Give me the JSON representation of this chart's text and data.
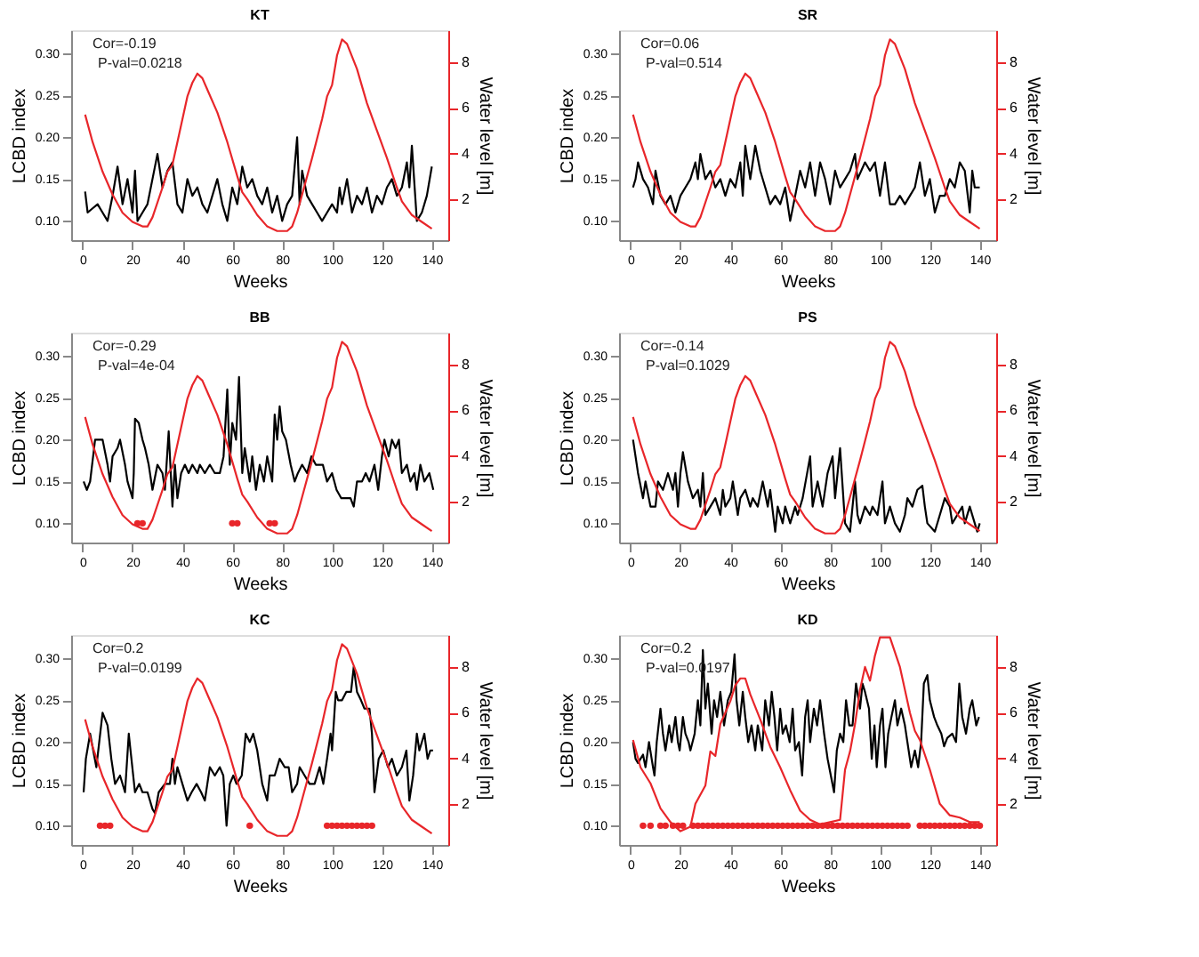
{
  "chart_data": [
    {
      "type": "line",
      "title": "KT",
      "xlabel": "Weeks",
      "ylabel": "LCBD index",
      "y2label": "Water level [m]",
      "xlim": [
        -4.6,
        146.6
      ],
      "xticks": [
        0,
        20,
        40,
        60,
        80,
        100,
        120,
        140
      ],
      "ylim": [
        0.077,
        0.328
      ],
      "yticks": [
        {
          "value": 0.1,
          "label": "0.10"
        },
        {
          "value": 0.15,
          "label": "0.15"
        },
        {
          "value": 0.2,
          "label": "0.20"
        },
        {
          "value": 0.25,
          "label": "0.25"
        },
        {
          "value": 0.3,
          "label": "0.30"
        }
      ],
      "y2lim": [
        0.2,
        9.4
      ],
      "y2ticks": [
        2,
        4,
        6,
        8
      ],
      "annotations": [
        "Cor=-0.19",
        "P-val=0.0218"
      ],
      "series": [
        {
          "color": "#000000",
          "x": [
            1,
            2,
            4,
            6,
            8,
            10,
            12,
            14,
            16,
            18,
            20,
            21,
            22,
            24,
            26,
            28,
            30,
            32,
            34,
            36,
            38,
            40,
            42,
            44,
            46,
            48,
            50,
            52,
            54,
            56,
            58,
            60,
            62,
            64,
            66,
            68,
            70,
            72,
            74,
            76,
            78,
            80,
            82,
            84,
            86,
            87,
            88,
            90,
            92,
            94,
            96,
            98,
            100,
            102,
            103,
            104,
            106,
            108,
            110,
            112,
            114,
            116,
            118,
            120,
            122,
            124,
            126,
            128,
            130,
            131,
            132,
            134,
            136,
            138,
            140
          ],
          "values": [
            0.135,
            0.11,
            0.115,
            0.12,
            0.11,
            0.1,
            0.13,
            0.165,
            0.12,
            0.15,
            0.11,
            0.16,
            0.1,
            0.11,
            0.12,
            0.15,
            0.18,
            0.14,
            0.16,
            0.17,
            0.12,
            0.11,
            0.15,
            0.13,
            0.14,
            0.12,
            0.11,
            0.13,
            0.15,
            0.12,
            0.1,
            0.14,
            0.12,
            0.165,
            0.14,
            0.15,
            0.13,
            0.12,
            0.14,
            0.11,
            0.13,
            0.1,
            0.12,
            0.13,
            0.2,
            0.12,
            0.16,
            0.13,
            0.12,
            0.11,
            0.1,
            0.11,
            0.12,
            0.11,
            0.14,
            0.12,
            0.15,
            0.11,
            0.13,
            0.12,
            0.14,
            0.11,
            0.13,
            0.12,
            0.14,
            0.15,
            0.13,
            0.14,
            0.17,
            0.14,
            0.19,
            0.1,
            0.11,
            0.13,
            0.165
          ]
        },
        {
          "color": "#e8262a",
          "axis": "y2",
          "x": [
            1,
            4,
            8,
            12,
            16,
            20,
            24,
            26,
            28,
            32,
            34,
            36,
            38,
            42,
            44,
            46,
            48,
            50,
            54,
            58,
            62,
            64,
            66,
            70,
            74,
            78,
            82,
            84,
            86,
            88,
            92,
            96,
            98,
            100,
            102,
            104,
            106,
            110,
            114,
            118,
            122,
            126,
            128,
            132,
            136,
            140
          ],
          "values": [
            5.7,
            4.5,
            3.2,
            2.2,
            1.4,
            1.0,
            0.8,
            0.8,
            1.2,
            2.5,
            3.2,
            3.5,
            4.5,
            6.5,
            7.1,
            7.5,
            7.3,
            6.8,
            5.8,
            4.5,
            3.0,
            2.3,
            2.0,
            1.3,
            0.8,
            0.6,
            0.6,
            0.8,
            1.4,
            2.2,
            3.8,
            5.5,
            6.5,
            7.0,
            8.3,
            9.0,
            8.8,
            7.7,
            6.2,
            5.0,
            3.8,
            2.5,
            1.9,
            1.3,
            1.0,
            0.7
          ]
        }
      ]
    },
    {
      "type": "line",
      "title": "SR",
      "xlabel": "Weeks",
      "ylabel": "LCBD index",
      "y2label": "Water level [m]",
      "xlim": [
        -4.6,
        146.6
      ],
      "xticks": [
        0,
        20,
        40,
        60,
        80,
        100,
        120,
        140
      ],
      "ylim": [
        0.077,
        0.328
      ],
      "yticks": [
        {
          "value": 0.1,
          "label": "0.10"
        },
        {
          "value": 0.15,
          "label": "0.15"
        },
        {
          "value": 0.2,
          "label": "0.20"
        },
        {
          "value": 0.25,
          "label": "0.25"
        },
        {
          "value": 0.3,
          "label": "0.30"
        }
      ],
      "y2lim": [
        0.2,
        9.4
      ],
      "y2ticks": [
        2,
        4,
        6,
        8
      ],
      "annotations": [
        "Cor=0.06",
        "P-val=0.514"
      ],
      "series": [
        {
          "color": "#000000",
          "x": [
            1,
            2,
            3,
            5,
            7,
            9,
            10,
            12,
            14,
            16,
            18,
            20,
            22,
            24,
            26,
            27,
            28,
            30,
            32,
            34,
            36,
            38,
            40,
            42,
            44,
            45,
            46,
            48,
            50,
            52,
            54,
            56,
            58,
            60,
            62,
            64,
            66,
            68,
            70,
            72,
            74,
            76,
            78,
            80,
            82,
            84,
            86,
            88,
            90,
            91,
            94,
            96,
            98,
            100,
            102,
            104,
            106,
            108,
            110,
            112,
            114,
            116,
            118,
            120,
            122,
            124,
            126,
            128,
            130,
            132,
            134,
            136,
            137,
            138,
            140
          ],
          "values": [
            0.14,
            0.15,
            0.17,
            0.15,
            0.14,
            0.12,
            0.16,
            0.13,
            0.12,
            0.13,
            0.11,
            0.13,
            0.14,
            0.15,
            0.17,
            0.15,
            0.18,
            0.15,
            0.16,
            0.14,
            0.15,
            0.13,
            0.15,
            0.14,
            0.17,
            0.13,
            0.19,
            0.15,
            0.19,
            0.16,
            0.14,
            0.12,
            0.13,
            0.12,
            0.14,
            0.1,
            0.13,
            0.16,
            0.14,
            0.17,
            0.13,
            0.17,
            0.15,
            0.12,
            0.16,
            0.14,
            0.15,
            0.16,
            0.18,
            0.15,
            0.17,
            0.16,
            0.17,
            0.13,
            0.17,
            0.12,
            0.12,
            0.13,
            0.12,
            0.13,
            0.14,
            0.17,
            0.13,
            0.15,
            0.11,
            0.13,
            0.13,
            0.15,
            0.14,
            0.17,
            0.16,
            0.11,
            0.16,
            0.14,
            0.14
          ]
        },
        {
          "color": "#e8262a",
          "axis": "y2",
          "x": [
            1,
            4,
            8,
            12,
            16,
            20,
            24,
            26,
            28,
            32,
            34,
            36,
            38,
            42,
            44,
            46,
            48,
            50,
            54,
            58,
            62,
            64,
            66,
            70,
            74,
            78,
            82,
            84,
            86,
            88,
            92,
            96,
            98,
            100,
            102,
            104,
            106,
            110,
            114,
            118,
            122,
            126,
            128,
            132,
            136,
            140
          ],
          "values": [
            5.7,
            4.5,
            3.2,
            2.2,
            1.4,
            1.0,
            0.8,
            0.8,
            1.2,
            2.5,
            3.2,
            3.5,
            4.5,
            6.5,
            7.1,
            7.5,
            7.3,
            6.8,
            5.8,
            4.5,
            3.0,
            2.3,
            2.0,
            1.3,
            0.8,
            0.6,
            0.6,
            0.8,
            1.4,
            2.2,
            3.8,
            5.5,
            6.5,
            7.0,
            8.3,
            9.0,
            8.8,
            7.7,
            6.2,
            5.0,
            3.8,
            2.5,
            1.9,
            1.3,
            1.0,
            0.7
          ]
        }
      ]
    },
    {
      "type": "line",
      "title": "BB",
      "xlabel": "Weeks",
      "ylabel": "LCBD index",
      "y2label": "Water level [m]",
      "xlim": [
        -4.6,
        146.6
      ],
      "xticks": [
        0,
        20,
        40,
        60,
        80,
        100,
        120,
        140
      ],
      "ylim": [
        0.077,
        0.328
      ],
      "yticks": [
        {
          "value": 0.1,
          "label": "0.10"
        },
        {
          "value": 0.15,
          "label": "0.15"
        },
        {
          "value": 0.2,
          "label": "0.20"
        },
        {
          "value": 0.25,
          "label": "0.25"
        },
        {
          "value": 0.3,
          "label": "0.30"
        }
      ],
      "y2lim": [
        0.2,
        9.4
      ],
      "y2ticks": [
        2,
        4,
        6,
        8
      ],
      "annotations": [
        "Cor=-0.29",
        "P-val=4e-04"
      ],
      "series": [
        {
          "color": "#000000",
          "x": [
            0.4,
            1.7,
            3,
            5,
            7,
            8,
            10,
            11,
            12,
            14,
            15,
            17,
            18,
            20,
            20.5,
            21,
            22.5,
            24,
            25,
            26.5,
            28,
            30,
            32,
            33,
            34.5,
            36,
            37,
            38,
            39.5,
            41,
            42.5,
            44,
            46,
            47,
            49,
            51,
            53,
            55,
            56.5,
            58,
            59,
            60,
            61.5,
            62.7,
            64,
            65,
            67,
            68,
            69.5,
            71,
            72.7,
            74,
            76,
            77,
            78,
            79,
            80,
            81.5,
            83.4,
            85,
            86.3,
            88,
            90,
            91.7,
            93.5,
            96.3,
            98,
            100,
            101.8,
            103.7,
            105.5,
            107.4,
            108.7,
            110,
            112,
            113.5,
            115,
            117,
            118.5,
            120,
            121,
            122.7,
            124,
            125.5,
            126.8,
            128,
            130,
            131.4,
            133,
            134,
            135.4,
            137,
            139,
            140.6
          ],
          "values": [
            0.15,
            0.14,
            0.15,
            0.2,
            0.2,
            0.2,
            0.17,
            0.15,
            0.18,
            0.19,
            0.2,
            0.17,
            0.15,
            0.13,
            0.16,
            0.225,
            0.22,
            0.2,
            0.19,
            0.17,
            0.14,
            0.17,
            0.16,
            0.14,
            0.21,
            0.12,
            0.17,
            0.13,
            0.16,
            0.17,
            0.16,
            0.17,
            0.16,
            0.17,
            0.16,
            0.17,
            0.16,
            0.16,
            0.18,
            0.26,
            0.17,
            0.22,
            0.2,
            0.275,
            0.16,
            0.19,
            0.15,
            0.18,
            0.14,
            0.17,
            0.15,
            0.18,
            0.15,
            0.23,
            0.2,
            0.24,
            0.21,
            0.2,
            0.17,
            0.15,
            0.16,
            0.17,
            0.16,
            0.18,
            0.17,
            0.17,
            0.15,
            0.16,
            0.14,
            0.13,
            0.13,
            0.13,
            0.12,
            0.15,
            0.15,
            0.16,
            0.15,
            0.17,
            0.14,
            0.18,
            0.2,
            0.18,
            0.2,
            0.19,
            0.2,
            0.16,
            0.17,
            0.15,
            0.16,
            0.14,
            0.17,
            0.15,
            0.16,
            0.14
          ]
        },
        {
          "color": "#e8262a",
          "axis": "y2",
          "x": [
            1,
            4,
            8,
            12,
            16,
            20,
            24,
            26,
            28,
            32,
            34,
            36,
            38,
            42,
            44,
            46,
            48,
            50,
            54,
            58,
            62,
            64,
            66,
            70,
            74,
            78,
            82,
            84,
            86,
            88,
            92,
            96,
            98,
            100,
            102,
            104,
            106,
            110,
            114,
            118,
            122,
            126,
            128,
            132,
            136,
            140
          ],
          "values": [
            5.7,
            4.5,
            3.2,
            2.2,
            1.4,
            1.0,
            0.8,
            0.8,
            1.2,
            2.5,
            3.2,
            3.5,
            4.5,
            6.5,
            7.1,
            7.5,
            7.3,
            6.8,
            5.8,
            4.5,
            3.0,
            2.3,
            2.0,
            1.3,
            0.8,
            0.6,
            0.6,
            0.8,
            1.4,
            2.2,
            3.8,
            5.5,
            6.5,
            7.0,
            8.3,
            9.0,
            8.8,
            7.7,
            6.2,
            5.0,
            3.8,
            2.5,
            1.9,
            1.3,
            1.0,
            0.7
          ]
        },
        {
          "type": "scatter",
          "marker": "circle",
          "color": "#e8262a",
          "x": [
            22,
            24,
            60,
            62,
            75,
            77
          ],
          "values": [
            0.1,
            0.1,
            0.1,
            0.1,
            0.1,
            0.1
          ]
        }
      ]
    },
    {
      "type": "line",
      "title": "PS",
      "xlabel": "Weeks",
      "ylabel": "LCBD index",
      "y2label": "Water level [m]",
      "xlim": [
        -4.6,
        146.6
      ],
      "xticks": [
        0,
        20,
        40,
        60,
        80,
        100,
        120,
        140
      ],
      "ylim": [
        0.077,
        0.328
      ],
      "yticks": [
        {
          "value": 0.1,
          "label": "0.10"
        },
        {
          "value": 0.15,
          "label": "0.15"
        },
        {
          "value": 0.2,
          "label": "0.20"
        },
        {
          "value": 0.25,
          "label": "0.25"
        },
        {
          "value": 0.3,
          "label": "0.30"
        }
      ],
      "y2lim": [
        0.2,
        9.4
      ],
      "y2ticks": [
        2,
        4,
        6,
        8
      ],
      "annotations": [
        "Cor=-0.14",
        "P-val=0.1029"
      ],
      "series": [
        {
          "color": "#000000",
          "x": [
            1,
            3,
            5,
            6,
            8,
            10,
            11,
            13,
            15,
            17,
            18,
            19,
            20,
            21,
            23,
            25,
            27,
            28,
            29,
            30,
            32,
            34,
            36,
            37,
            38,
            40,
            41,
            43,
            44,
            46,
            48,
            49,
            51,
            53,
            55,
            56,
            58,
            59,
            61,
            62,
            64,
            66,
            67,
            69,
            72,
            73,
            75,
            77,
            79,
            81,
            82,
            84,
            86,
            88,
            90,
            91,
            92,
            94,
            96,
            97,
            99,
            101,
            102,
            104,
            106,
            108,
            110,
            111,
            113,
            115,
            117,
            118,
            119,
            122,
            124,
            126,
            128,
            129,
            131,
            133,
            134,
            136,
            138,
            139,
            140
          ],
          "values": [
            0.2,
            0.16,
            0.13,
            0.15,
            0.12,
            0.12,
            0.15,
            0.14,
            0.16,
            0.14,
            0.16,
            0.12,
            0.16,
            0.185,
            0.15,
            0.13,
            0.14,
            0.12,
            0.16,
            0.11,
            0.12,
            0.13,
            0.11,
            0.14,
            0.12,
            0.13,
            0.15,
            0.11,
            0.13,
            0.14,
            0.12,
            0.13,
            0.12,
            0.15,
            0.12,
            0.14,
            0.09,
            0.12,
            0.1,
            0.12,
            0.1,
            0.12,
            0.11,
            0.13,
            0.18,
            0.12,
            0.15,
            0.12,
            0.16,
            0.18,
            0.13,
            0.19,
            0.1,
            0.09,
            0.15,
            0.11,
            0.1,
            0.12,
            0.11,
            0.12,
            0.11,
            0.15,
            0.1,
            0.12,
            0.1,
            0.09,
            0.11,
            0.13,
            0.12,
            0.14,
            0.145,
            0.12,
            0.1,
            0.09,
            0.11,
            0.13,
            0.12,
            0.1,
            0.11,
            0.12,
            0.1,
            0.12,
            0.1,
            0.09,
            0.1
          ]
        },
        {
          "color": "#e8262a",
          "axis": "y2",
          "x": [
            1,
            4,
            8,
            12,
            16,
            20,
            24,
            26,
            28,
            32,
            34,
            36,
            38,
            42,
            44,
            46,
            48,
            50,
            54,
            58,
            62,
            64,
            66,
            70,
            74,
            78,
            82,
            84,
            86,
            88,
            92,
            96,
            98,
            100,
            102,
            104,
            106,
            110,
            114,
            118,
            122,
            126,
            128,
            132,
            136,
            140
          ],
          "values": [
            5.7,
            4.5,
            3.2,
            2.2,
            1.4,
            1.0,
            0.8,
            0.8,
            1.2,
            2.5,
            3.2,
            3.5,
            4.5,
            6.5,
            7.1,
            7.5,
            7.3,
            6.8,
            5.8,
            4.5,
            3.0,
            2.3,
            2.0,
            1.3,
            0.8,
            0.6,
            0.6,
            0.8,
            1.4,
            2.2,
            3.8,
            5.5,
            6.5,
            7.0,
            8.3,
            9.0,
            8.8,
            7.7,
            6.2,
            5.0,
            3.8,
            2.5,
            1.9,
            1.3,
            1.0,
            0.7
          ]
        }
      ]
    },
    {
      "type": "line",
      "title": "KC",
      "xlabel": "Weeks",
      "ylabel": "LCBD index",
      "y2label": "Water level [m]",
      "xlim": [
        -4.6,
        146.6
      ],
      "xticks": [
        0,
        20,
        40,
        60,
        80,
        100,
        120,
        140
      ],
      "ylim": [
        0.077,
        0.328
      ],
      "yticks": [
        {
          "value": 0.1,
          "label": "0.10"
        },
        {
          "value": 0.15,
          "label": "0.15"
        },
        {
          "value": 0.2,
          "label": "0.20"
        },
        {
          "value": 0.25,
          "label": "0.25"
        },
        {
          "value": 0.3,
          "label": "0.30"
        }
      ],
      "y2lim": [
        0.2,
        9.4
      ],
      "y2ticks": [
        2,
        4,
        6,
        8
      ],
      "annotations": [
        "Cor=0.2",
        "P-val=0.0199"
      ],
      "series": [
        {
          "color": "#000000",
          "x": [
            0.4,
            1.3,
            3,
            5.5,
            8,
            10,
            11.5,
            13,
            15,
            17,
            18.5,
            19.2,
            21,
            22.7,
            24,
            26,
            28,
            29,
            30.5,
            33,
            35,
            36,
            37,
            38,
            40,
            42,
            43.7,
            45.7,
            47.5,
            49,
            51,
            53,
            55,
            56.4,
            57.7,
            59,
            60.4,
            61.7,
            63.8,
            65.4,
            67,
            68.4,
            70,
            72,
            74,
            75,
            77,
            79,
            81,
            82.6,
            84,
            86,
            87,
            89,
            91,
            93,
            95,
            96.5,
            98,
            99.4,
            100,
            101.5,
            102.4,
            104,
            105.7,
            107.6,
            108.7,
            110,
            111.6,
            113,
            115,
            116,
            117,
            118.7,
            120.5,
            122.4,
            124,
            126,
            128,
            129.8,
            131,
            132.5,
            134,
            135,
            137,
            138.3,
            139.4,
            140.5
          ],
          "values": [
            0.14,
            0.18,
            0.21,
            0.17,
            0.235,
            0.22,
            0.18,
            0.15,
            0.16,
            0.14,
            0.21,
            0.19,
            0.14,
            0.15,
            0.14,
            0.14,
            0.12,
            0.115,
            0.14,
            0.15,
            0.15,
            0.18,
            0.15,
            0.17,
            0.15,
            0.13,
            0.14,
            0.15,
            0.14,
            0.13,
            0.17,
            0.16,
            0.17,
            0.16,
            0.1,
            0.15,
            0.16,
            0.15,
            0.16,
            0.21,
            0.2,
            0.21,
            0.19,
            0.15,
            0.13,
            0.16,
            0.16,
            0.18,
            0.17,
            0.17,
            0.14,
            0.15,
            0.17,
            0.16,
            0.15,
            0.15,
            0.17,
            0.15,
            0.18,
            0.21,
            0.19,
            0.26,
            0.25,
            0.25,
            0.26,
            0.26,
            0.29,
            0.26,
            0.25,
            0.24,
            0.24,
            0.21,
            0.14,
            0.18,
            0.19,
            0.17,
            0.18,
            0.16,
            0.17,
            0.19,
            0.13,
            0.16,
            0.21,
            0.19,
            0.21,
            0.18,
            0.19,
            0.19
          ]
        },
        {
          "color": "#e8262a",
          "axis": "y2",
          "x": [
            1,
            4,
            8,
            12,
            16,
            20,
            24,
            26,
            28,
            32,
            34,
            36,
            38,
            42,
            44,
            46,
            48,
            50,
            54,
            58,
            62,
            64,
            66,
            70,
            74,
            78,
            82,
            84,
            86,
            88,
            92,
            96,
            98,
            100,
            102,
            104,
            106,
            110,
            114,
            118,
            122,
            126,
            128,
            132,
            136,
            140
          ],
          "values": [
            5.7,
            4.5,
            3.2,
            2.2,
            1.4,
            1.0,
            0.8,
            0.8,
            1.2,
            2.5,
            3.2,
            3.5,
            4.5,
            6.5,
            7.1,
            7.5,
            7.3,
            6.8,
            5.8,
            4.5,
            3.0,
            2.3,
            2.0,
            1.3,
            0.8,
            0.6,
            0.6,
            0.8,
            1.4,
            2.2,
            3.8,
            5.5,
            6.5,
            7.0,
            8.3,
            9.0,
            8.8,
            7.7,
            6.2,
            5.0,
            3.8,
            2.5,
            1.9,
            1.3,
            1.0,
            0.7
          ]
        },
        {
          "type": "scatter",
          "marker": "circle",
          "color": "#e8262a",
          "x": [
            7,
            9,
            11,
            67,
            98,
            100,
            102,
            104,
            106,
            108,
            110,
            112,
            114,
            116
          ],
          "values": [
            0.1,
            0.1,
            0.1,
            0.1,
            0.1,
            0.1,
            0.1,
            0.1,
            0.1,
            0.1,
            0.1,
            0.1,
            0.1,
            0.1
          ]
        }
      ]
    },
    {
      "type": "line",
      "title": "KD",
      "xlabel": "Weeks",
      "ylabel": "LCBD index",
      "y2label": "Water level [m]",
      "xlim": [
        -4.6,
        146.6
      ],
      "xticks": [
        0,
        20,
        40,
        60,
        80,
        100,
        120,
        140
      ],
      "ylim": [
        0.077,
        0.328
      ],
      "yticks": [
        {
          "value": 0.1,
          "label": "0.10"
        },
        {
          "value": 0.15,
          "label": "0.15"
        },
        {
          "value": 0.2,
          "label": "0.20"
        },
        {
          "value": 0.25,
          "label": "0.25"
        },
        {
          "value": 0.3,
          "label": "0.30"
        }
      ],
      "y2lim": [
        0.2,
        9.4
      ],
      "y2ticks": [
        2,
        4,
        6,
        8
      ],
      "annotations": [
        "Cor=0.2",
        "P-val=0.0197"
      ],
      "series": [
        {
          "color": "#000000",
          "x": [
            1,
            2,
            3,
            4,
            5,
            6,
            7.4,
            9,
            9.6,
            10.5,
            12,
            13,
            14,
            15.5,
            16.5,
            18,
            19,
            19.7,
            21,
            22,
            23.3,
            24,
            25.7,
            27,
            28,
            29,
            30,
            31,
            32.5,
            33.5,
            34.7,
            36,
            37.5,
            39,
            40.4,
            41.7,
            42.5,
            43.6,
            45,
            46,
            47.2,
            48.5,
            50,
            51,
            52.8,
            54,
            55.5,
            56.6,
            57.7,
            58.8,
            60,
            61,
            62.3,
            63.8,
            65,
            66,
            67.5,
            68.8,
            70,
            71,
            72,
            73.5,
            74.8,
            76,
            77.6,
            79,
            80.3,
            81.6,
            82.7,
            84,
            85.3,
            86.4,
            87.7,
            89,
            90.4,
            92,
            93,
            94,
            95.6,
            96.7,
            97.8,
            98.7,
            100,
            101,
            102.2,
            103.3,
            104.6,
            106,
            107,
            108.5,
            110,
            111,
            112.5,
            114,
            115.3,
            116.5,
            117.6,
            119,
            120,
            121.7,
            123,
            124.6,
            125.7,
            127,
            129,
            130.5,
            131.8,
            133,
            134.5,
            136,
            137,
            138.6,
            139.7
          ],
          "values": [
            0.2,
            0.18,
            0.175,
            0.18,
            0.185,
            0.17,
            0.2,
            0.17,
            0.16,
            0.2,
            0.24,
            0.21,
            0.19,
            0.22,
            0.2,
            0.23,
            0.2,
            0.19,
            0.23,
            0.21,
            0.2,
            0.19,
            0.21,
            0.25,
            0.22,
            0.31,
            0.24,
            0.27,
            0.21,
            0.25,
            0.23,
            0.26,
            0.22,
            0.25,
            0.26,
            0.305,
            0.25,
            0.22,
            0.26,
            0.23,
            0.2,
            0.22,
            0.19,
            0.22,
            0.19,
            0.25,
            0.22,
            0.26,
            0.23,
            0.19,
            0.24,
            0.21,
            0.22,
            0.2,
            0.24,
            0.19,
            0.2,
            0.16,
            0.23,
            0.25,
            0.2,
            0.24,
            0.22,
            0.25,
            0.21,
            0.18,
            0.16,
            0.14,
            0.19,
            0.21,
            0.2,
            0.25,
            0.22,
            0.22,
            0.27,
            0.24,
            0.27,
            0.26,
            0.24,
            0.18,
            0.22,
            0.17,
            0.22,
            0.24,
            0.17,
            0.21,
            0.23,
            0.25,
            0.22,
            0.24,
            0.22,
            0.2,
            0.17,
            0.19,
            0.17,
            0.2,
            0.27,
            0.28,
            0.25,
            0.23,
            0.22,
            0.21,
            0.195,
            0.205,
            0.21,
            0.2,
            0.27,
            0.23,
            0.21,
            0.24,
            0.25,
            0.22,
            0.23
          ]
        },
        {
          "color": "#e8262a",
          "axis": "y2",
          "x": [
            1,
            4,
            8,
            12,
            16,
            20,
            24,
            26,
            30,
            32,
            34,
            36,
            38,
            40,
            42,
            44,
            46,
            48,
            52,
            56,
            60,
            64,
            68,
            72,
            76,
            80,
            84,
            86,
            88,
            90,
            92,
            94,
            96,
            98,
            100,
            102,
            104,
            108,
            112,
            114,
            116,
            120,
            124,
            128,
            132,
            136,
            140
          ],
          "values": [
            4.8,
            3.6,
            2.9,
            1.8,
            1.2,
            0.8,
            1.0,
            2.0,
            2.8,
            4.3,
            4.1,
            5.5,
            6.0,
            6.5,
            7.2,
            7.5,
            7.5,
            6.8,
            5.7,
            4.5,
            3.6,
            2.6,
            1.7,
            1.3,
            1.1,
            1.2,
            1.3,
            3.5,
            4.3,
            5.5,
            7.0,
            8.0,
            7.4,
            8.5,
            9.3,
            9.3,
            9.3,
            8.0,
            6.0,
            5.2,
            4.8,
            3.5,
            2.0,
            1.5,
            1.4,
            1.2,
            1.2
          ]
        },
        {
          "type": "scatter",
          "marker": "circle",
          "color": "#e8262a",
          "x": [
            5,
            8,
            12,
            14,
            17,
            19,
            21,
            25,
            27,
            29,
            31,
            33,
            35,
            37,
            39,
            41,
            43,
            45,
            47,
            49,
            51,
            53,
            55,
            57,
            59,
            61,
            63,
            65,
            67,
            69,
            71,
            73,
            75,
            77,
            79,
            81,
            83,
            85,
            87,
            89,
            91,
            93,
            95,
            97,
            99,
            101,
            103,
            105,
            107,
            109,
            111,
            116,
            118,
            120,
            122,
            124,
            126,
            128,
            130,
            132,
            134,
            136,
            138,
            140
          ],
          "values": [
            0.1,
            0.1,
            0.1,
            0.1,
            0.1,
            0.1,
            0.1,
            0.1,
            0.1,
            0.1,
            0.1,
            0.1,
            0.1,
            0.1,
            0.1,
            0.1,
            0.1,
            0.1,
            0.1,
            0.1,
            0.1,
            0.1,
            0.1,
            0.1,
            0.1,
            0.1,
            0.1,
            0.1,
            0.1,
            0.1,
            0.1,
            0.1,
            0.1,
            0.1,
            0.1,
            0.1,
            0.1,
            0.1,
            0.1,
            0.1,
            0.1,
            0.1,
            0.1,
            0.1,
            0.1,
            0.1,
            0.1,
            0.1,
            0.1,
            0.1,
            0.1,
            0.1,
            0.1,
            0.1,
            0.1,
            0.1,
            0.1,
            0.1,
            0.1,
            0.1,
            0.1,
            0.1,
            0.1,
            0.1
          ]
        }
      ]
    }
  ]
}
